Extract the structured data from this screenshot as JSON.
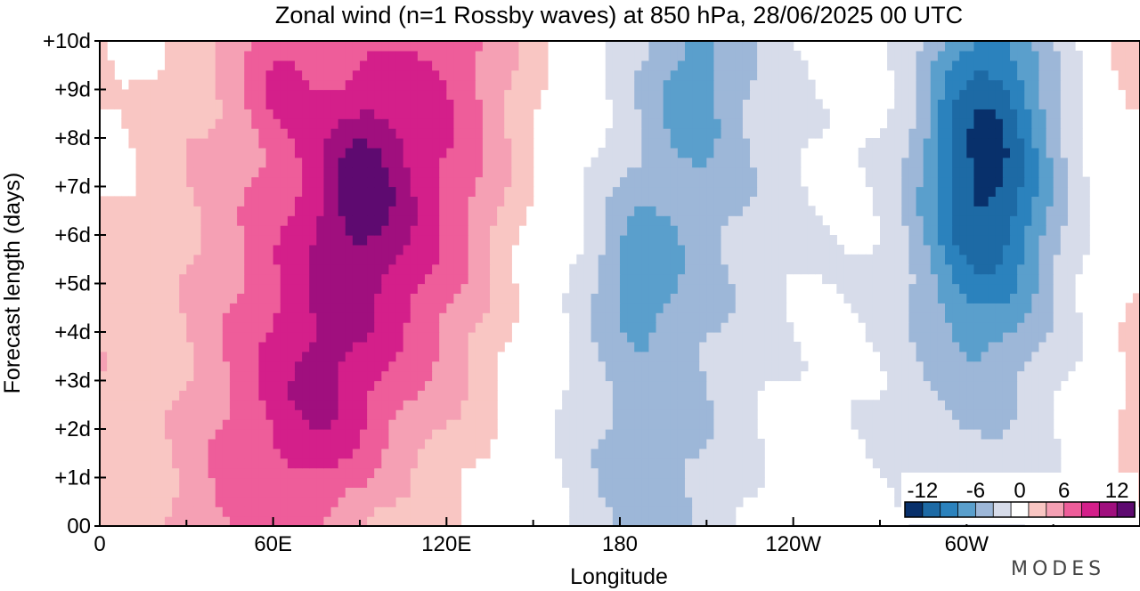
{
  "chart_data": {
    "type": "heatmap",
    "title": "Zonal wind (n=1 Rossby waves) at 850 hPa,  28/06/2025  00 UTC",
    "xlabel": "Longitude",
    "ylabel": "Forecast length (days)",
    "x_ticks": [
      "0",
      "60E",
      "120E",
      "180",
      "120W",
      "60W"
    ],
    "y_ticks": [
      "00",
      "+1d",
      "+2d",
      "+3d",
      "+4d",
      "+5d",
      "+6d",
      "+7d",
      "+8d",
      "+9d",
      "+10d"
    ],
    "xlim": [
      0,
      360
    ],
    "ylim": [
      0,
      10
    ],
    "colorbar": {
      "labels": [
        "-12",
        "-6",
        "0",
        "6",
        "12"
      ],
      "levels": [
        -14,
        -12,
        -10,
        -8,
        -6,
        -4,
        -2,
        2,
        4,
        6,
        8,
        10,
        12,
        14
      ],
      "colors": [
        "#08306b",
        "#1d6aa5",
        "#2b82bd",
        "#5a9fcc",
        "#9db7d8",
        "#d7dcea",
        "#ffffff",
        "#f9c6c3",
        "#f5a0b4",
        "#ee5d9a",
        "#d41f8a",
        "#a00f7e",
        "#5e0a70"
      ]
    },
    "series": [
      {
        "lon": [
          0,
          15,
          30,
          45,
          60,
          75,
          90,
          105,
          120,
          135,
          150,
          165,
          180,
          195,
          210,
          225,
          240,
          255,
          270,
          285,
          300,
          315,
          330,
          345
        ],
        "days": [
          0,
          1,
          2,
          3,
          4,
          5,
          6,
          7,
          8,
          9,
          10
        ]
      }
    ],
    "brand": "MODES"
  }
}
